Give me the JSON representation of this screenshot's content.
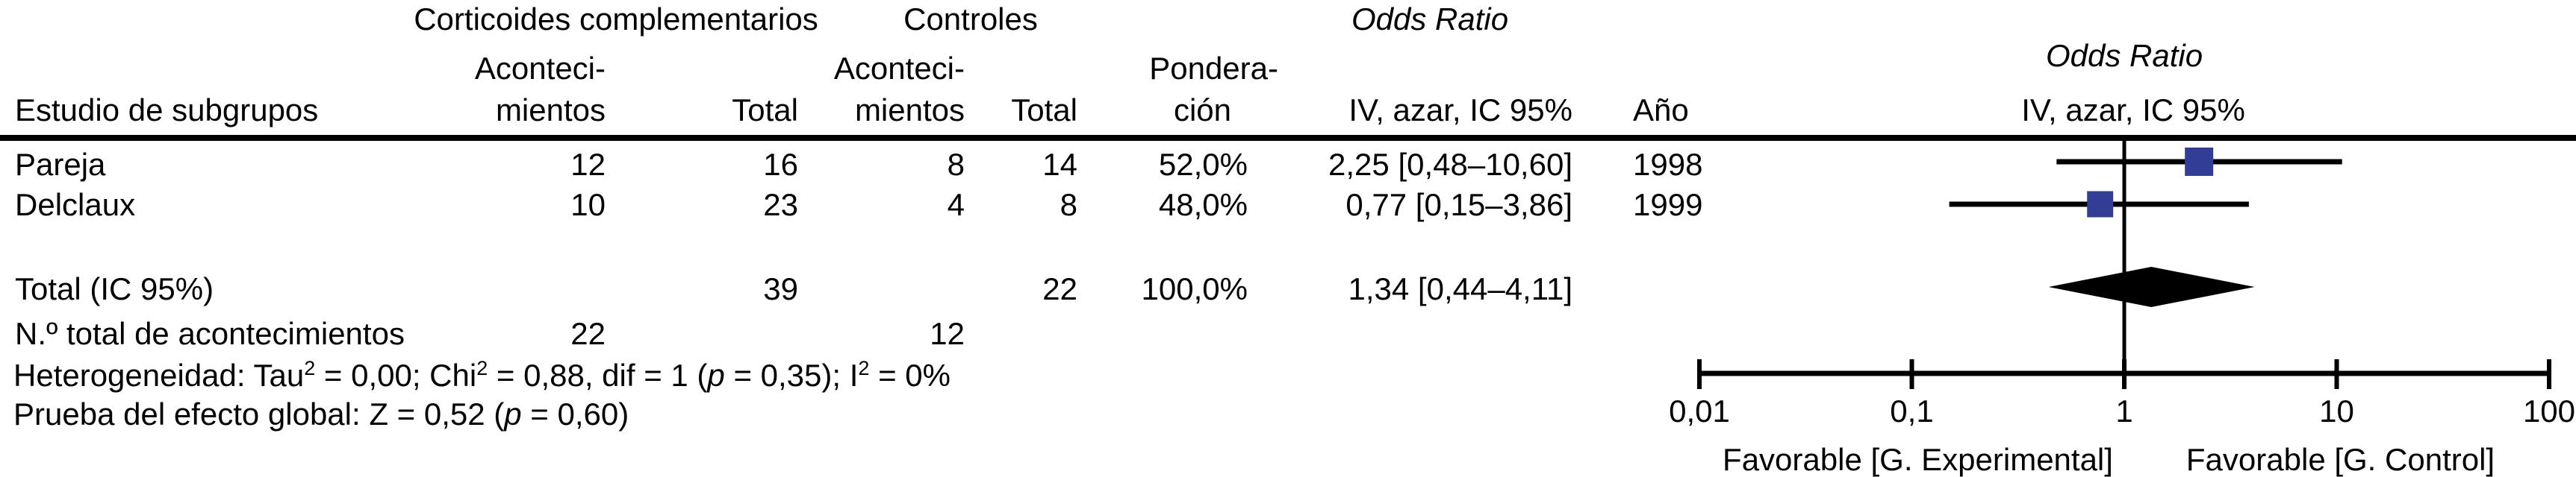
{
  "table": {
    "group_headers": {
      "experimental": "Corticoides complementarios",
      "control": "Controles",
      "odds_ratio": "Odds Ratio"
    },
    "column_headers": {
      "study": "Estudio de subgrupos",
      "events_line1": "Aconteci-",
      "events_line2": "mientos",
      "total": "Total",
      "weight_line1": "Pondera-",
      "weight_line2": "ción",
      "or_ci": "IV, azar, IC 95%",
      "year": "Año"
    },
    "rows": [
      {
        "study": "Pareja",
        "exp_events": "12",
        "exp_total": "16",
        "ctrl_events": "8",
        "ctrl_total": "14",
        "weight": "52,0%",
        "or_ci": "2,25 [0,48–10,60]",
        "year": "1998"
      },
      {
        "study": "Delclaux",
        "exp_events": "10",
        "exp_total": "23",
        "ctrl_events": "4",
        "ctrl_total": "8",
        "weight": "48,0%",
        "or_ci": "0,77 [0,15–3,86]",
        "year": "1999"
      }
    ],
    "total_row": {
      "label": "Total (IC 95%)",
      "exp_total": "39",
      "ctrl_total": "22",
      "weight": "100,0%",
      "or_ci": "1,34 [0,44–4,11]"
    },
    "events_row": {
      "label": "N.º total de acontecimientos",
      "exp_events": "22",
      "ctrl_events": "12"
    },
    "stats": {
      "heterogeneity": [
        {
          "t": "Heterogeneidad: Tau"
        },
        {
          "t": "2",
          "sup": true
        },
        {
          "t": " = 0,00; Chi"
        },
        {
          "t": "2",
          "sup": true
        },
        {
          "t": " = 0,88, dif = 1 ("
        },
        {
          "t": "p",
          "italic": true
        },
        {
          "t": " = 0,35); I"
        },
        {
          "t": "2",
          "sup": true
        },
        {
          "t": " = 0%"
        }
      ],
      "overall_effect": [
        {
          "t": "Prueba del efecto global: Z = 0,52 ("
        },
        {
          "t": "p",
          "italic": true
        },
        {
          "t": " = 0,60)"
        }
      ]
    }
  },
  "plot": {
    "title": "Odds Ratio",
    "subtitle": "IV, azar, IC 95%"
  },
  "chart_data": {
    "type": "forest",
    "scale": "log10",
    "x_range": [
      0.01,
      100
    ],
    "x_ticks": [
      0.01,
      0.1,
      1,
      10,
      100
    ],
    "x_tick_labels": [
      "0,01",
      "0,1",
      "1",
      "10",
      "100"
    ],
    "null_line": 1,
    "studies": [
      {
        "name": "Pareja",
        "year": "1998",
        "or": 2.25,
        "ci_low": 0.48,
        "ci_high": 10.6,
        "weight_pct": 52.0
      },
      {
        "name": "Delclaux",
        "year": "1999",
        "or": 0.77,
        "ci_low": 0.15,
        "ci_high": 3.86,
        "weight_pct": 48.0
      }
    ],
    "total": {
      "label": "Total (IC 95%)",
      "or": 1.34,
      "ci_low": 0.44,
      "ci_high": 4.11,
      "weight_pct": 100.0
    },
    "effect_label_left": "Favorable [G. Experimental]",
    "effect_label_right": "Favorable [G. Control]",
    "marker_color": "#323D96",
    "line_color": "#000000"
  }
}
